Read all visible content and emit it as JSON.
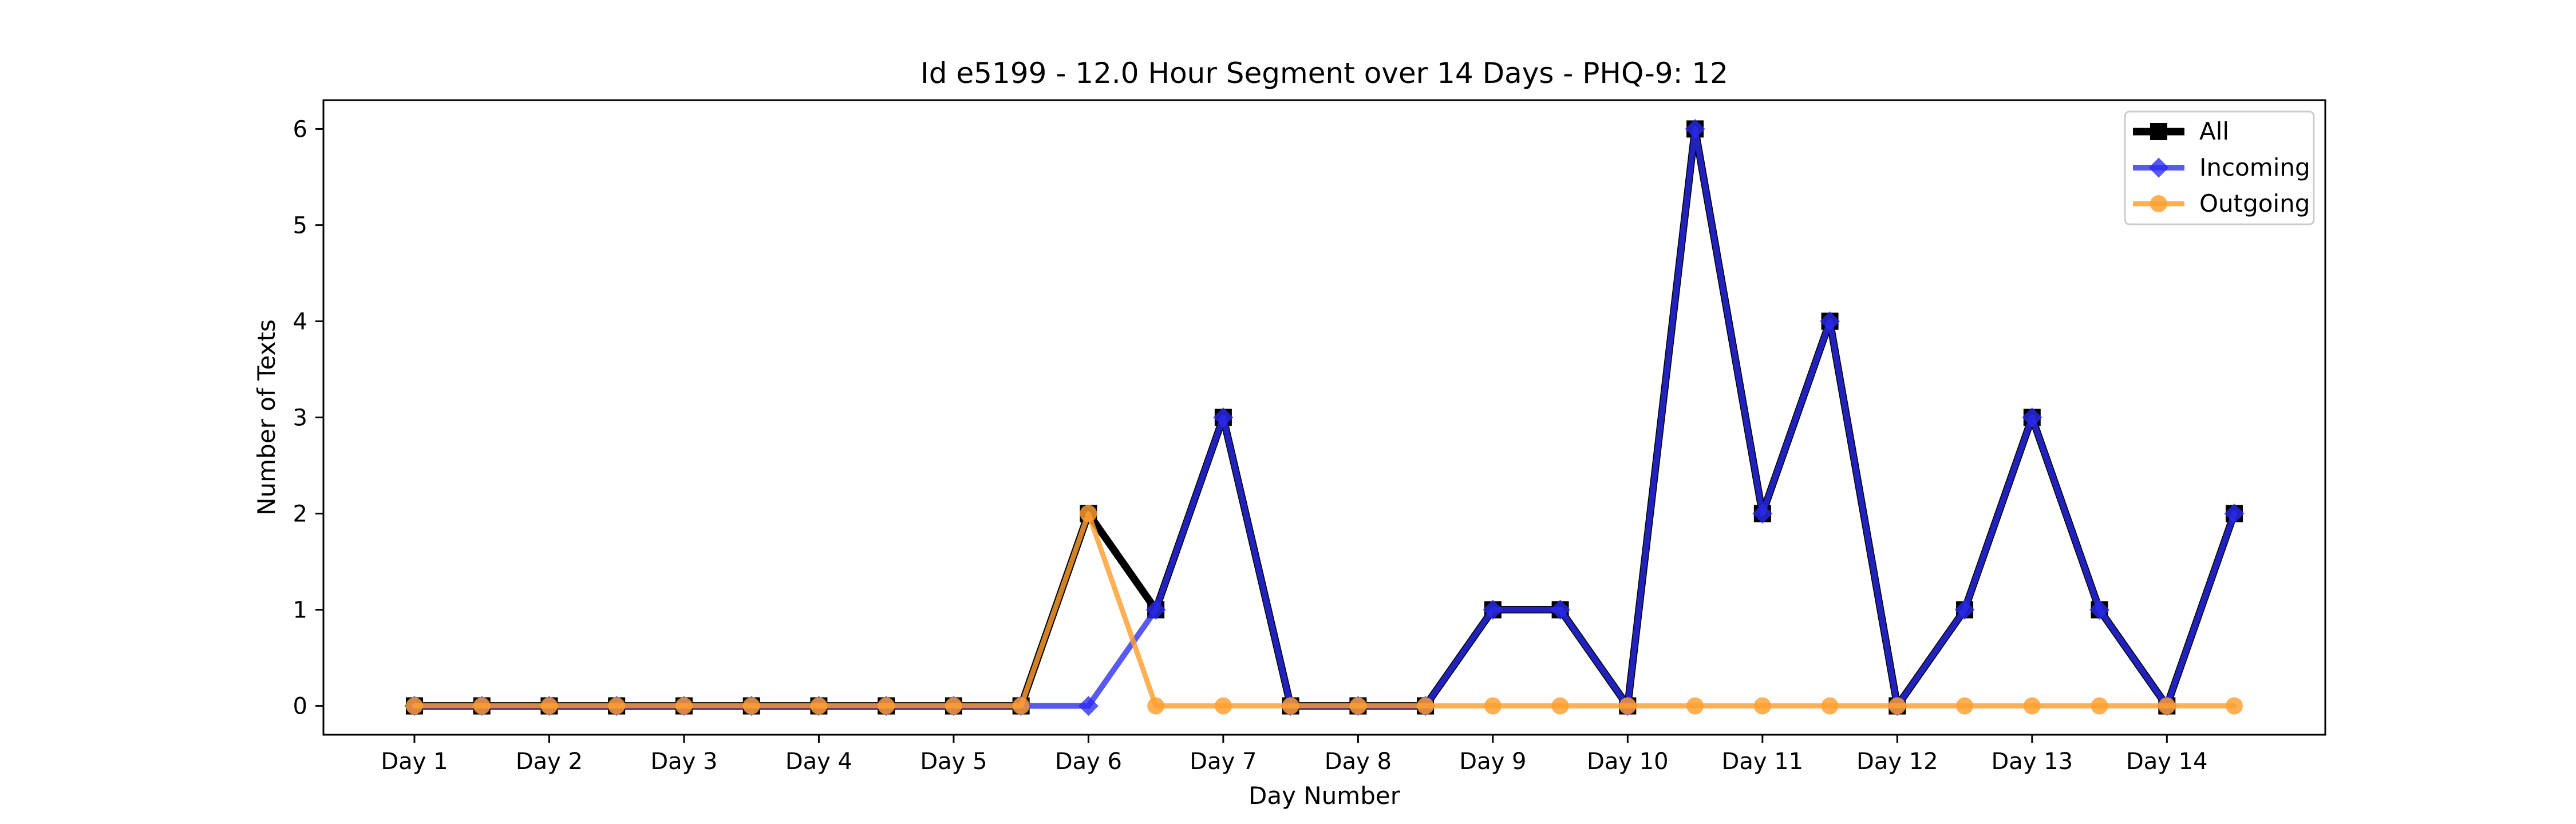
{
  "chart_data": {
    "type": "line",
    "title": "Id e5199 - 12.0 Hour Segment over 14 Days - PHQ-9: 12",
    "xlabel": "Day Number",
    "ylabel": "Number of Texts",
    "x": [
      0,
      1,
      2,
      3,
      4,
      5,
      6,
      7,
      8,
      9,
      10,
      11,
      12,
      13,
      14,
      15,
      16,
      17,
      18,
      19,
      20,
      21,
      22,
      23,
      24,
      25,
      26,
      27
    ],
    "xticks": [
      0,
      2,
      4,
      6,
      8,
      10,
      12,
      14,
      16,
      18,
      20,
      22,
      24,
      26
    ],
    "xtick_labels": [
      "Day 1",
      "Day 2",
      "Day 3",
      "Day 4",
      "Day 5",
      "Day 6",
      "Day 7",
      "Day 8",
      "Day 9",
      "Day 10",
      "Day 11",
      "Day 12",
      "Day 13",
      "Day 14"
    ],
    "xlim": [
      -1.35,
      28.35
    ],
    "yticks": [
      0,
      1,
      2,
      3,
      4,
      5,
      6
    ],
    "ylim": [
      -0.3,
      6.3
    ],
    "grid": false,
    "legend": "top-right",
    "series": [
      {
        "name": "All",
        "color": "#000000",
        "marker": "square",
        "values": [
          0,
          0,
          0,
          0,
          0,
          0,
          0,
          0,
          0,
          0,
          2,
          1,
          3,
          0,
          0,
          0,
          1,
          1,
          0,
          6,
          2,
          4,
          0,
          1,
          3,
          1,
          0,
          2
        ]
      },
      {
        "name": "Incoming",
        "color": "#2a2af0",
        "marker": "diamond",
        "values": [
          0,
          0,
          0,
          0,
          0,
          0,
          0,
          0,
          0,
          0,
          0,
          1,
          3,
          0,
          0,
          0,
          1,
          1,
          0,
          6,
          2,
          4,
          0,
          1,
          3,
          1,
          0,
          2
        ]
      },
      {
        "name": "Outgoing",
        "color": "#ff9f2e",
        "marker": "circle",
        "values": [
          0,
          0,
          0,
          0,
          0,
          0,
          0,
          0,
          0,
          0,
          2,
          0,
          0,
          0,
          0,
          0,
          0,
          0,
          0,
          0,
          0,
          0,
          0,
          0,
          0,
          0,
          0,
          0
        ]
      }
    ]
  }
}
